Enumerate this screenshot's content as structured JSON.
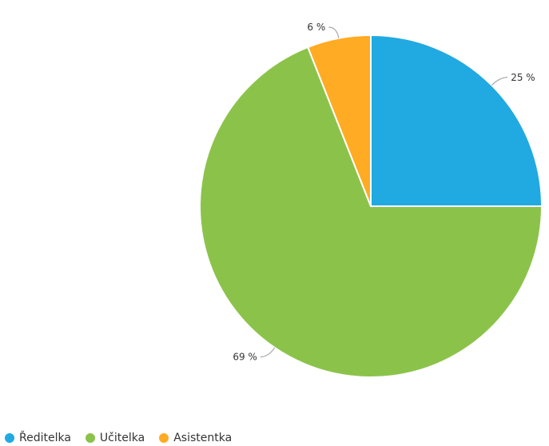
{
  "chart_data": {
    "type": "pie",
    "categories": [
      "Ředitelka",
      "Učitelka",
      "Asistentka"
    ],
    "values": [
      25,
      69,
      6
    ],
    "value_labels": [
      "25 %",
      "69 %",
      "6 %"
    ],
    "colors": [
      "#21a9e1",
      "#8bc34a",
      "#ffab23"
    ],
    "legend_position": "bottom-left",
    "start_angle": "12 o'clock, clockwise"
  },
  "legend": {
    "items": [
      {
        "label": "Ředitelka",
        "color": "#21a9e1"
      },
      {
        "label": "Učitelka",
        "color": "#8bc34a"
      },
      {
        "label": "Asistentka",
        "color": "#ffab23"
      }
    ]
  }
}
